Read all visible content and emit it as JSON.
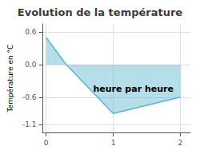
{
  "chart_data": {
    "type": "line",
    "title": "Evolution de la température",
    "ylabel": "Température en °C",
    "x": [
      0,
      0.3,
      1.0,
      2.0
    ],
    "values": [
      0.5,
      0.0,
      -0.9,
      -0.6
    ],
    "color": "#5ab5cc",
    "xlim": [
      -0.05,
      2.15
    ],
    "ylim": [
      -1.25,
      0.75
    ],
    "xticks": [
      0,
      1,
      2
    ],
    "yticks": [
      -1.1,
      -0.6,
      {
        "value": 0,
        "label": "0.0"
      },
      0.6
    ],
    "grid": true,
    "annotations": [
      {
        "text": "heure par heure",
        "x": 1.3,
        "y": -0.45
      }
    ]
  }
}
